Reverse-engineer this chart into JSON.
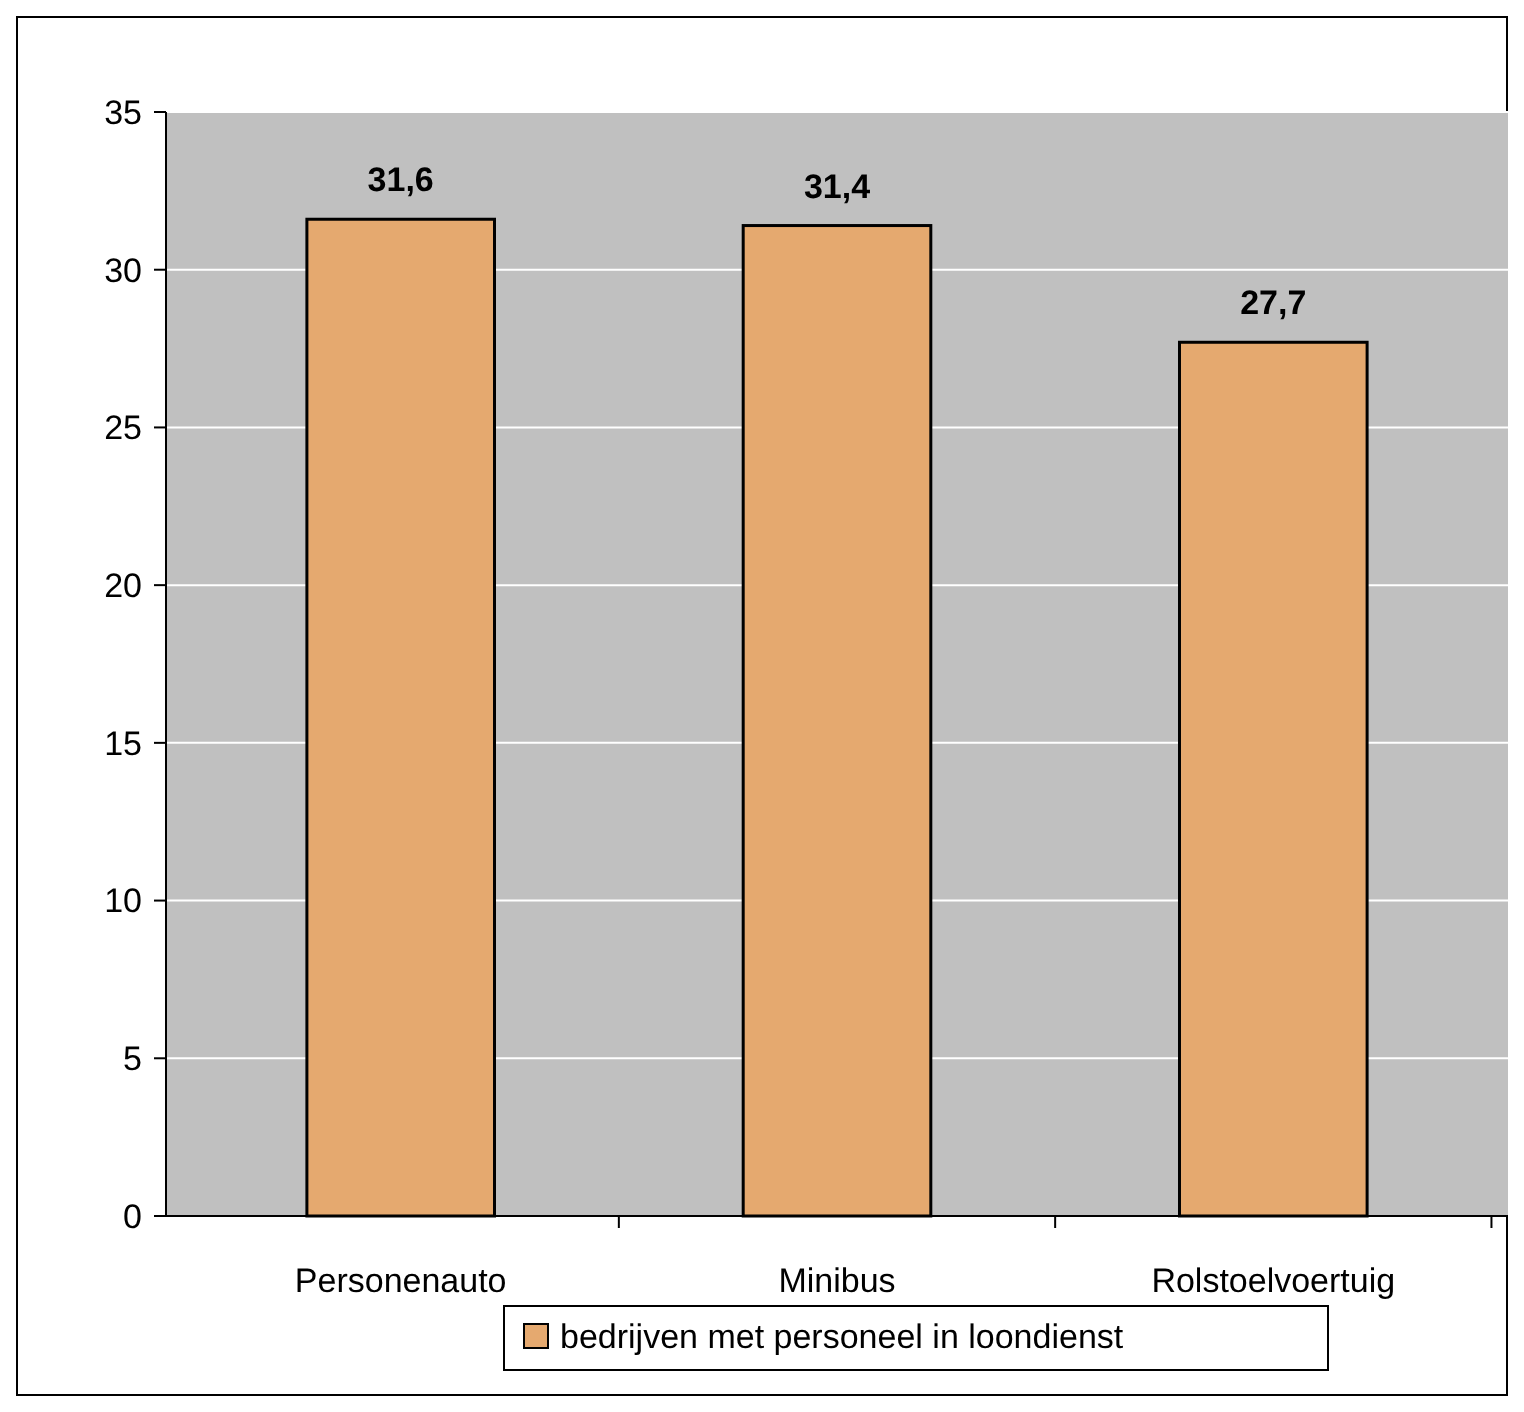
{
  "chart_data": {
    "type": "bar",
    "categories": [
      "Personenauto",
      "Minibus",
      "Rolstoelvoertuig"
    ],
    "series": [
      {
        "name": "bedrijven met personeel in loondienst",
        "color": "#e5a96f",
        "values": [
          31.6,
          31.4,
          27.7
        ],
        "value_labels": [
          "31,6",
          "31,4",
          "27,7"
        ]
      }
    ],
    "ylim": [
      0,
      35
    ],
    "yticks": [
      0,
      5,
      10,
      15,
      20,
      25,
      30,
      35
    ],
    "grid": "y",
    "legend": "bottom"
  }
}
